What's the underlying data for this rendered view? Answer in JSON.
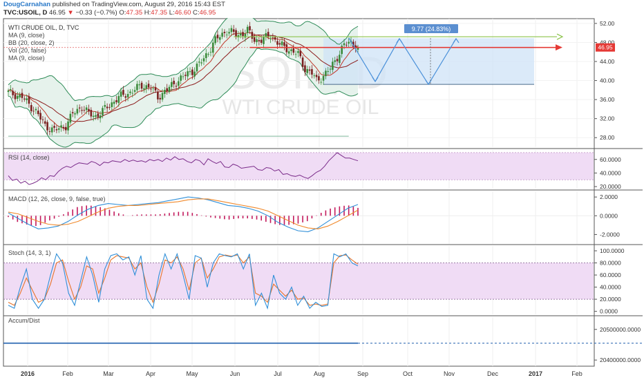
{
  "header": {
    "author": "DougCarnahan",
    "published_text": " published on TradingView.com, August 29, 2016 15:43 EST",
    "symbol": "TVC:USOIL, D",
    "last": "46.95",
    "arrow": "▼",
    "change": "−0.33 (−0.7%)",
    "o_label": "O:",
    "open": "47.35",
    "h_label": "H:",
    "high": "47.35",
    "l_label": "L:",
    "low": "46.60",
    "c_label": "C:",
    "close": "46.95"
  },
  "colors": {
    "candle_up": "#3a8a3a",
    "candle_down": "#7a1f1f",
    "bb_line": "#2e8b57",
    "bb_fill": "#e6f2ec",
    "ma_line": "#8b1a1a",
    "target_box": "#cfe3f7",
    "projection": "#4a90d9",
    "resistance": "#8bc34a",
    "current_line": "#e53935",
    "rsi_band": "#f0dcf5",
    "rsi_line": "#7b2c8a",
    "macd_line": "#2f8fd8",
    "signal_line": "#f0882a",
    "macd_hist": "#c2185b",
    "stoch_k": "#2f8fd8",
    "stoch_d": "#e8742a",
    "accum": "#1f5fae"
  },
  "chart_data": [
    {
      "type": "candlestick",
      "title": "WTI CRUDE OIL, D, TVC",
      "indicators": [
        "MA (9, close)",
        "BB (20, close, 2)",
        "Vol (20, false)",
        "MA (9, close)"
      ],
      "watermark_symbol": "USOIL, D",
      "watermark_name": "WTI CRUDE OIL",
      "ylim": [
        26,
        53
      ],
      "yticks": [
        "52.00",
        "48.00",
        "44.00",
        "40.00",
        "36.00",
        "32.00",
        "28.00"
      ],
      "last_price_label": "46.95",
      "last_price": 46.95,
      "resistance_level": 49.2,
      "box_top": 48.9,
      "box_bottom": 39.2,
      "support_level": 28.3,
      "measure_label": "9.77 (24.83%)",
      "close_path": [
        [
          0,
          37.5
        ],
        [
          6,
          36.5
        ],
        [
          12,
          33.5
        ],
        [
          16,
          30.5
        ],
        [
          20,
          29.5
        ],
        [
          25,
          30.5
        ],
        [
          28,
          33
        ],
        [
          32,
          34.5
        ],
        [
          35,
          33
        ],
        [
          38,
          32.5
        ],
        [
          42,
          34
        ],
        [
          48,
          36.5
        ],
        [
          53,
          37.5
        ],
        [
          58,
          39
        ],
        [
          62,
          38.5
        ],
        [
          65,
          36.5
        ],
        [
          70,
          38.5
        ],
        [
          75,
          40.5
        ],
        [
          80,
          42
        ],
        [
          85,
          44.5
        ],
        [
          90,
          48.5
        ],
        [
          95,
          50.5
        ],
        [
          100,
          49.5
        ],
        [
          104,
          50.5
        ],
        [
          107,
          48.5
        ],
        [
          110,
          48.5
        ],
        [
          114,
          49.5
        ],
        [
          118,
          47.5
        ],
        [
          122,
          46.5
        ],
        [
          126,
          45.5
        ],
        [
          129,
          42.5
        ],
        [
          132,
          41.5
        ],
        [
          134,
          40
        ],
        [
          137,
          41
        ],
        [
          140,
          42.5
        ],
        [
          143,
          45
        ],
        [
          146,
          47.5
        ],
        [
          149,
          48
        ],
        [
          151,
          47.5
        ],
        [
          152,
          46.95
        ]
      ]
    },
    {
      "type": "line",
      "name": "RSI (14, close)",
      "ylim": [
        17,
        74
      ],
      "yticks": [
        "60.0000",
        "40.0000",
        "20.0000"
      ],
      "values": [
        36,
        29,
        31,
        25,
        28,
        23,
        25,
        28,
        33,
        30,
        36,
        35,
        42,
        47,
        50,
        48,
        52,
        55,
        54,
        53,
        57,
        55,
        51,
        56,
        55,
        58,
        57,
        56,
        60,
        57,
        59,
        57,
        58,
        56,
        60,
        58,
        60,
        57,
        62,
        59,
        64,
        60,
        61,
        57,
        55,
        60,
        58,
        52,
        61,
        57,
        54,
        57,
        49,
        48,
        53,
        51,
        47,
        48,
        49,
        50,
        45,
        44,
        48,
        47,
        43,
        45,
        38,
        39,
        36,
        35,
        37,
        34,
        32,
        36,
        41,
        44,
        50,
        58,
        64,
        70,
        66,
        62,
        62,
        60,
        58
      ]
    },
    {
      "type": "line",
      "name": "MACD (12, 26, close, 9, false, true)",
      "ylim": [
        -3,
        2.6
      ],
      "yticks": [
        "2.0000",
        "0.0000",
        "-2.0000"
      ],
      "series": [
        {
          "values": [
            0.3,
            -0.3,
            -0.9,
            -1.4,
            -1.3,
            -1.1,
            -0.6,
            0.1,
            0.7,
            1.1,
            1.3,
            1.2,
            1.1,
            1.2,
            1.3,
            1.4,
            1.6,
            1.8,
            2.0,
            1.9,
            1.7,
            1.4,
            1.1,
            1.0,
            0.8,
            0.5,
            0.0,
            -0.7,
            -1.2,
            -1.6,
            -1.7,
            -1.3,
            -0.6,
            0.1,
            0.8,
            1.2
          ]
        },
        {
          "values": [
            0.4,
            0.2,
            -0.2,
            -0.6,
            -0.9,
            -1.0,
            -0.9,
            -0.6,
            -0.1,
            0.4,
            0.8,
            1.0,
            1.1,
            1.1,
            1.2,
            1.3,
            1.4,
            1.5,
            1.7,
            1.8,
            1.8,
            1.6,
            1.4,
            1.2,
            1.0,
            0.8,
            0.5,
            0.0,
            -0.5,
            -1.0,
            -1.3,
            -1.4,
            -1.1,
            -0.6,
            0.0,
            0.6
          ]
        }
      ]
    },
    {
      "type": "line",
      "name": "Stoch (14, 3, 1)",
      "ylim": [
        -5,
        108
      ],
      "yticks": [
        "100.0000",
        "80.0000",
        "60.0000",
        "40.0000",
        "20.0000",
        "0.0000"
      ],
      "series": [
        {
          "values": [
            10,
            5,
            40,
            70,
            20,
            5,
            20,
            60,
            95,
            80,
            30,
            10,
            50,
            90,
            60,
            15,
            70,
            92,
            95,
            85,
            90,
            60,
            92,
            20,
            5,
            60,
            95,
            70,
            95,
            60,
            20,
            92,
            88,
            40,
            80,
            95,
            92,
            90,
            95,
            70,
            95,
            10,
            30,
            5,
            60,
            30,
            20,
            40,
            10,
            25,
            5,
            15,
            8,
            10,
            95,
            90,
            95,
            80,
            75
          ]
        },
        {
          "values": [
            15,
            10,
            30,
            55,
            35,
            15,
            20,
            45,
            80,
            85,
            50,
            20,
            40,
            75,
            70,
            30,
            55,
            85,
            92,
            90,
            88,
            70,
            80,
            40,
            15,
            45,
            85,
            80,
            90,
            70,
            35,
            80,
            88,
            55,
            70,
            90,
            93,
            91,
            93,
            80,
            90,
            30,
            25,
            15,
            45,
            35,
            25,
            35,
            20,
            22,
            10,
            12,
            10,
            12,
            80,
            92,
            93,
            85,
            78
          ]
        }
      ]
    },
    {
      "type": "line",
      "name": "Accum/Dist",
      "ylim": [
        20380000,
        20540000
      ],
      "yticks": [
        "20500000.0000",
        "20400000.0000"
      ],
      "values": [
        20455000
      ]
    }
  ],
  "xaxis": {
    "labels": [
      "2016",
      "Feb",
      "Mar",
      "Apr",
      "May",
      "Jun",
      "Jul",
      "Aug",
      "Sep",
      "Oct",
      "Nov",
      "Dec",
      "2017",
      "Feb"
    ],
    "bold": [
      "2016",
      "2017"
    ]
  }
}
